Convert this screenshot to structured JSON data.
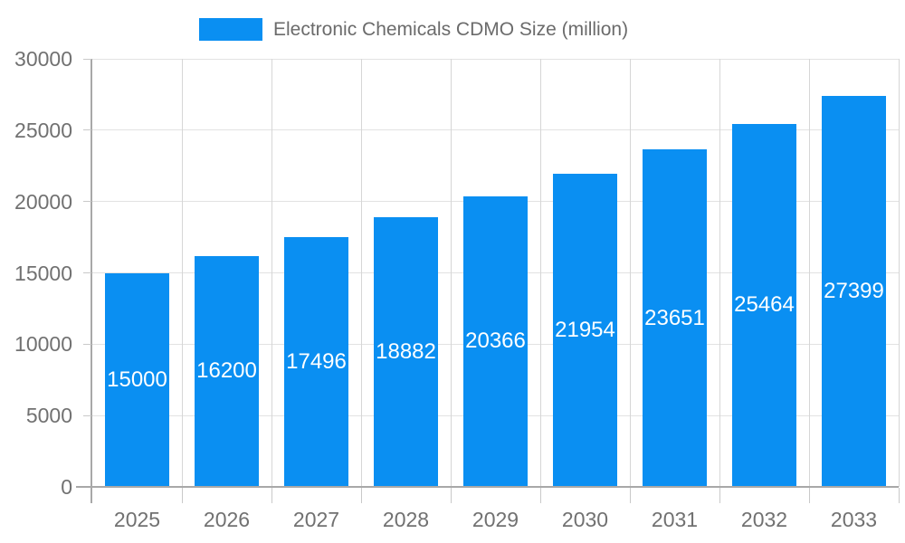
{
  "legend": {
    "label": "Electronic Chemicals CDMO Size (million)"
  },
  "chart_data": {
    "type": "bar",
    "title": "Electronic Chemicals CDMO Size (million)",
    "categories": [
      "2025",
      "2026",
      "2027",
      "2028",
      "2029",
      "2030",
      "2031",
      "2032",
      "2033"
    ],
    "series": [
      {
        "name": "Electronic Chemicals CDMO Size (million)",
        "values": [
          15000,
          16200,
          17496,
          18882,
          20366,
          21954,
          23651,
          25464,
          27399
        ]
      }
    ],
    "value_labels_shown": true,
    "xlabel": "",
    "ylabel": "",
    "ylim": [
      0,
      30000
    ],
    "ytick_step": 5000,
    "grid": true,
    "legend_position": "top",
    "colors": {
      "bar": "#0a8ff2",
      "value_label": "#ffffff",
      "axis_text": "#717171",
      "legend_text": "#6b6b6b",
      "hgrid": "#e2e2e2",
      "vgrid": "#d6d6d6",
      "axis_line": "#a8a8a8",
      "tick": "#c9c9c9",
      "background": "#ffffff"
    }
  }
}
